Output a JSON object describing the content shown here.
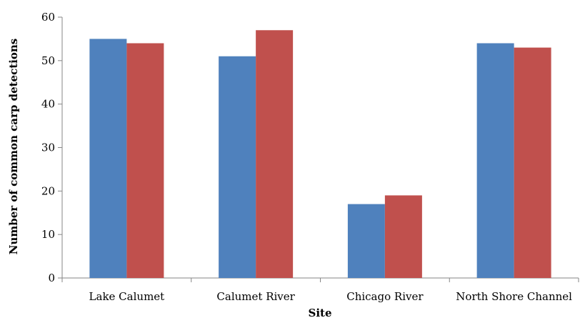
{
  "chart_data": {
    "type": "bar",
    "title": "",
    "xlabel": "Site",
    "ylabel": "Number of common carp detections",
    "categories": [
      "Lake Calumet",
      "Calumet River",
      "Chicago River",
      "North Shore Channel"
    ],
    "series": [
      {
        "color": "#4f81bd",
        "values": [
          55,
          51,
          17,
          54
        ]
      },
      {
        "color": "#c0504d",
        "values": [
          54,
          57,
          19,
          53
        ]
      }
    ],
    "ylim": [
      0,
      60
    ],
    "yticks": [
      0,
      10,
      20,
      30,
      40,
      50,
      60
    ],
    "grid": false,
    "legend": "none"
  }
}
